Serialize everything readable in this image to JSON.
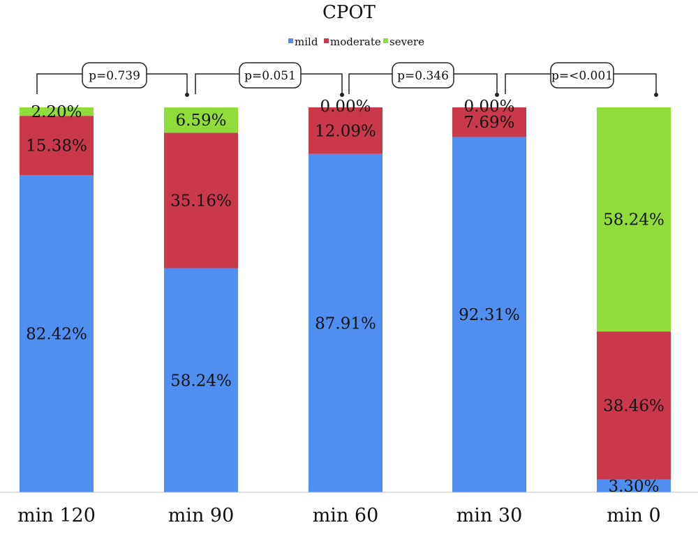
{
  "chart_data": {
    "type": "bar",
    "stacked": true,
    "percent_stacked": true,
    "title": "CPOT",
    "legend_position": "top-center",
    "categories": [
      "min 120",
      "min 90",
      "min 60",
      "min 30",
      "min 0"
    ],
    "series": [
      {
        "name": "mild",
        "color": "#4f8ff0",
        "values": [
          82.42,
          58.24,
          87.91,
          92.31,
          3.3
        ],
        "labels": [
          "82.42%",
          "58.24%",
          "87.91%",
          "92.31%",
          "3.30%"
        ]
      },
      {
        "name": "moderate",
        "color": "#c9394a",
        "values": [
          15.38,
          35.16,
          12.09,
          7.69,
          38.46
        ],
        "labels": [
          "15.38%",
          "35.16%",
          "12.09%",
          "7.69%",
          "38.46%"
        ]
      },
      {
        "name": "severe",
        "color": "#8fdc3a",
        "values": [
          2.2,
          6.59,
          0.0,
          0.0,
          58.24
        ],
        "labels": [
          "2.20%",
          "6.59%",
          "0.00%",
          "0.00%",
          "58.24%"
        ]
      }
    ],
    "ylim": [
      0,
      100
    ],
    "comparisons": [
      {
        "label": "p=0.739",
        "from": 0,
        "to": 1
      },
      {
        "label": "p=0.051",
        "from": 1,
        "to": 2
      },
      {
        "label": "p=0.346",
        "from": 2,
        "to": 3
      },
      {
        "label": "p=<0.001",
        "from": 3,
        "to": 4
      }
    ],
    "grid": false
  }
}
